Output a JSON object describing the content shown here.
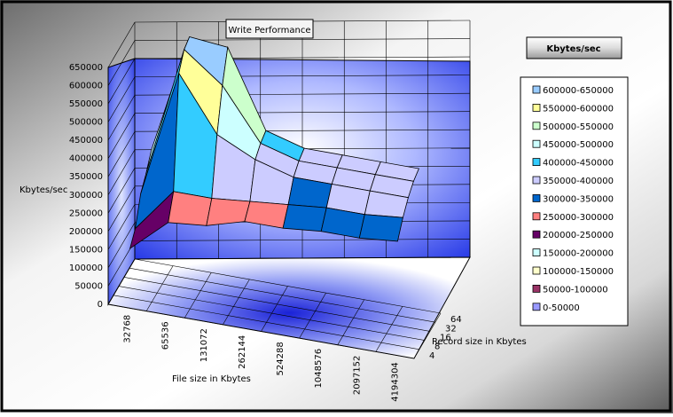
{
  "chart_data": {
    "type": "surface",
    "title": "Write Performance",
    "xlabel": "File size in Kbytes",
    "ylabel": "Kbytes/sec",
    "zlabel": "Record size in Kbytes",
    "legend_title": "Kbytes/sec",
    "legend_position": "right",
    "ylim": [
      0,
      650000
    ],
    "y_ticks": [
      0,
      50000,
      100000,
      150000,
      200000,
      250000,
      300000,
      350000,
      400000,
      450000,
      500000,
      550000,
      600000,
      650000
    ],
    "file_sizes": [
      "32768",
      "65536",
      "131072",
      "262144",
      "524288",
      "1048576",
      "2097152",
      "4194304"
    ],
    "record_sizes": [
      "4",
      "8",
      "16",
      "32",
      "64"
    ],
    "series": [
      {
        "name": "4",
        "values": [
          150000,
          240000,
          250000,
          280000,
          280000,
          290000,
          290000,
          300000
        ]
      },
      {
        "name": "8",
        "values": [
          180000,
          300000,
          300000,
          310000,
          320000,
          330000,
          330000,
          340000
        ]
      },
      {
        "name": "16",
        "values": [
          250000,
          600000,
          450000,
          400000,
          370000,
          370000,
          370000,
          370000
        ]
      },
      {
        "name": "32",
        "values": [
          280000,
          640000,
          560000,
          420000,
          390000,
          390000,
          390000,
          390000
        ]
      },
      {
        "name": "64",
        "values": [
          320000,
          650000,
          640000,
          430000,
          400000,
          400000,
          400000,
          400000
        ]
      }
    ],
    "legend": [
      {
        "label": "600000-650000",
        "color": "#99ccff"
      },
      {
        "label": "550000-600000",
        "color": "#ffff99"
      },
      {
        "label": "500000-550000",
        "color": "#ccffcc"
      },
      {
        "label": "450000-500000",
        "color": "#ccffff"
      },
      {
        "label": "400000-450000",
        "color": "#33ccff"
      },
      {
        "label": "350000-400000",
        "color": "#ccccff"
      },
      {
        "label": "300000-350000",
        "color": "#0066cc"
      },
      {
        "label": "250000-300000",
        "color": "#ff8080"
      },
      {
        "label": "200000-250000",
        "color": "#660066"
      },
      {
        "label": "150000-200000",
        "color": "#ccffff"
      },
      {
        "label": "100000-150000",
        "color": "#ffffcc"
      },
      {
        "label": "50000-100000",
        "color": "#993366"
      },
      {
        "label": "0-50000",
        "color": "#9999ff"
      }
    ]
  }
}
